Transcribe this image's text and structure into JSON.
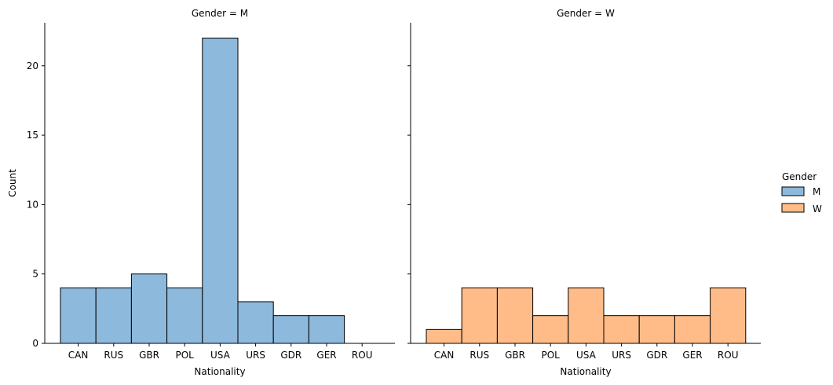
{
  "chart_data": {
    "type": "bar",
    "hue": "Gender",
    "colors": {
      "M": "#8db9dc",
      "W": "#ffbc88"
    },
    "ylabel": "Count",
    "ylim": [
      0,
      23.1
    ],
    "yticks": [
      0,
      5,
      10,
      15,
      20
    ],
    "legend": {
      "title": "Gender",
      "placement": "right",
      "entries": [
        "M",
        "W"
      ]
    },
    "panels": [
      {
        "title": "Gender = M",
        "series": "M",
        "xlabel": "Nationality",
        "categories": [
          "CAN",
          "RUS",
          "GBR",
          "POL",
          "USA",
          "URS",
          "GDR",
          "GER",
          "ROU"
        ],
        "values": [
          4,
          4,
          5,
          4,
          22,
          3,
          2,
          2,
          0
        ]
      },
      {
        "title": "Gender = W",
        "series": "W",
        "xlabel": "Nationality",
        "categories": [
          "CAN",
          "RUS",
          "GBR",
          "POL",
          "USA",
          "URS",
          "GDR",
          "GER",
          "ROU"
        ],
        "values": [
          1,
          4,
          4,
          2,
          4,
          2,
          2,
          2,
          4
        ]
      }
    ]
  }
}
